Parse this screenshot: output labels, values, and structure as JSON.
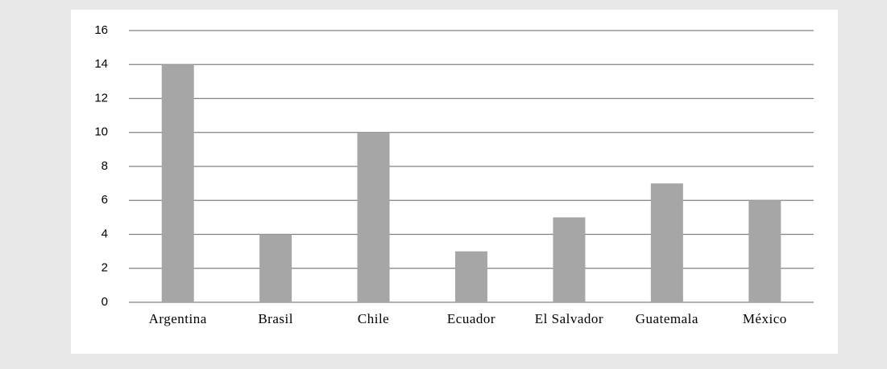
{
  "chart_data": {
    "type": "bar",
    "categories": [
      "Argentina",
      "Brasil",
      "Chile",
      "Ecuador",
      "El Salvador",
      "Guatemala",
      "México"
    ],
    "values": [
      14,
      4,
      10,
      3,
      5,
      7,
      6
    ],
    "color": "#a6a6a6",
    "ylim": [
      0,
      16
    ],
    "yticks": [
      0,
      2,
      4,
      6,
      8,
      10,
      12,
      14,
      16
    ],
    "grid": true
  }
}
